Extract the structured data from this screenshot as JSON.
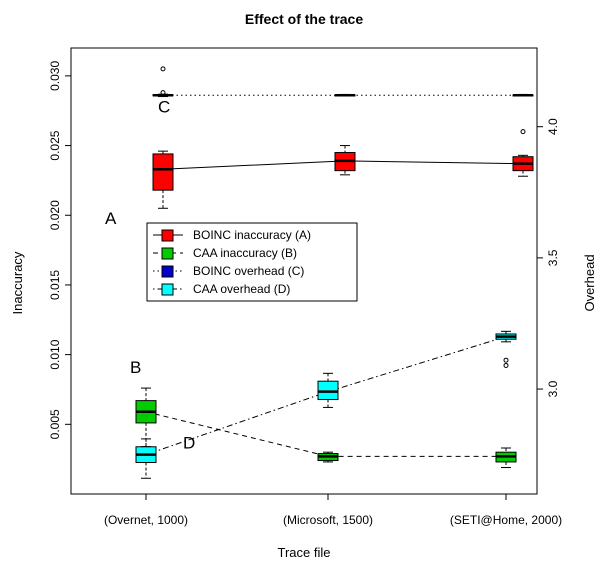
{
  "chart_data": {
    "type": "box",
    "title": "Effect of the trace",
    "xlabel": "Trace file",
    "ylabel_left": "Inaccuracy",
    "ylabel_right": "Overhead",
    "categories": [
      "(Overnet, 1000)",
      "(Microsoft, 1500)",
      "(SETI@Home, 2000)"
    ],
    "y_left": {
      "range": [
        0,
        0.032
      ],
      "ticks": [
        "0.005",
        "0.010",
        "0.015",
        "0.020",
        "0.025",
        "0.030"
      ]
    },
    "y_right": {
      "range": [
        2.6,
        4.3
      ],
      "ticks": [
        "3.0",
        "3.5",
        "4.0"
      ]
    },
    "series": [
      {
        "name": "BOINC inaccuracy (A)",
        "axis": "left",
        "color": "#ff0000",
        "line": "solid",
        "boxes": [
          {
            "category": "(Overnet, 1000)",
            "min": 0.0205,
            "q1": 0.0218,
            "median": 0.0233,
            "q3": 0.0244,
            "max": 0.0246,
            "outliers": [
              0.0305
            ]
          },
          {
            "category": "(Microsoft, 1500)",
            "min": 0.0229,
            "q1": 0.0232,
            "median": 0.0239,
            "q3": 0.0245,
            "max": 0.025,
            "outliers": []
          },
          {
            "category": "(SETI@Home, 2000)",
            "min": 0.0228,
            "q1": 0.0232,
            "median": 0.0237,
            "q3": 0.0242,
            "max": 0.0243,
            "outliers": [
              0.026
            ]
          }
        ]
      },
      {
        "name": "CAA inaccuracy (B)",
        "axis": "left",
        "color": "#00cc00",
        "line": "dashed",
        "boxes": [
          {
            "category": "(Overnet, 1000)",
            "min": 0.0034,
            "q1": 0.0051,
            "median": 0.0059,
            "q3": 0.0067,
            "max": 0.0076,
            "outliers": []
          },
          {
            "category": "(Microsoft, 1500)",
            "min": 0.0023,
            "q1": 0.0024,
            "median": 0.0027,
            "q3": 0.0029,
            "max": 0.003,
            "outliers": []
          },
          {
            "category": "(SETI@Home, 2000)",
            "min": 0.0019,
            "q1": 0.0023,
            "median": 0.0027,
            "q3": 0.003,
            "max": 0.0033,
            "outliers": []
          }
        ]
      },
      {
        "name": "BOINC overhead (C)",
        "axis": "right",
        "color": "#0000cc",
        "line": "dotted",
        "boxes": [
          {
            "category": "(Overnet, 1000)",
            "min": 4.115,
            "q1": 4.118,
            "median": 4.12,
            "q3": 4.122,
            "max": 4.124,
            "outliers": [
              4.13
            ]
          },
          {
            "category": "(Microsoft, 1500)",
            "min": 4.117,
            "q1": 4.119,
            "median": 4.12,
            "q3": 4.121,
            "max": 4.123,
            "outliers": []
          },
          {
            "category": "(SETI@Home, 2000)",
            "min": 4.117,
            "q1": 4.119,
            "median": 4.12,
            "q3": 4.121,
            "max": 4.123,
            "outliers": []
          }
        ]
      },
      {
        "name": "CAA overhead (D)",
        "axis": "right",
        "color": "#00ffff",
        "line": "dotdash",
        "boxes": [
          {
            "category": "(Overnet, 1000)",
            "min": 2.66,
            "q1": 2.72,
            "median": 2.75,
            "q3": 2.78,
            "max": 2.81,
            "outliers": []
          },
          {
            "category": "(Microsoft, 1500)",
            "min": 2.93,
            "q1": 2.96,
            "median": 2.99,
            "q3": 3.03,
            "max": 3.06,
            "outliers": []
          },
          {
            "category": "(SETI@Home, 2000)",
            "min": 3.18,
            "q1": 3.19,
            "median": 3.2,
            "q3": 3.21,
            "max": 3.22,
            "outliers": [
              3.11,
              3.09
            ]
          }
        ]
      }
    ],
    "annotations": [
      {
        "text": "A",
        "category": "(Overnet, 1000)",
        "axis": "left",
        "value": 0.0198
      },
      {
        "text": "B",
        "category": "(Overnet, 1000)",
        "axis": "left",
        "value": 0.0091
      },
      {
        "text": "C",
        "category": "(Overnet, 1000)",
        "axis": "left",
        "value": 0.0278
      },
      {
        "text": "D",
        "category": "(Overnet, 1000)",
        "axis": "left",
        "value": 0.0037
      }
    ],
    "legend": {
      "position": "center-left"
    }
  }
}
